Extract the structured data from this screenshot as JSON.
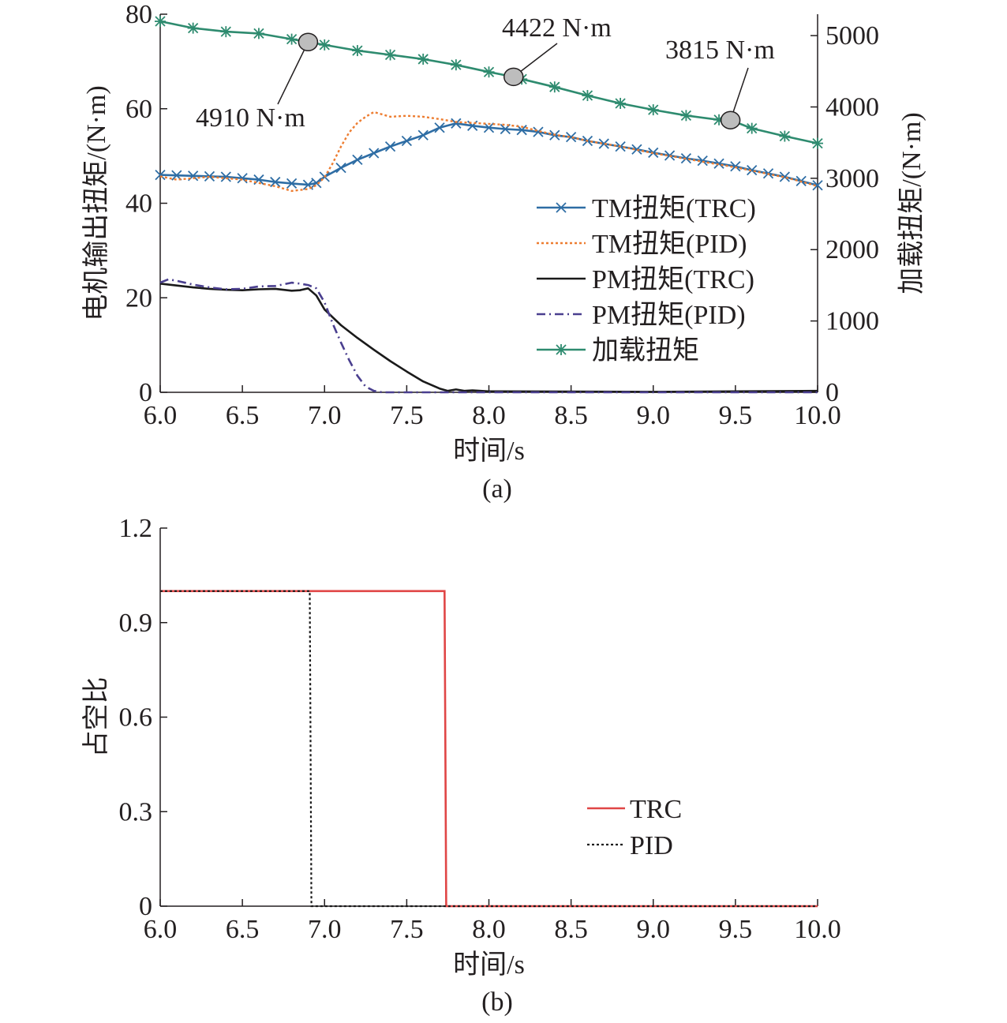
{
  "chart_data": [
    {
      "type": "line",
      "panel_label": "(a)",
      "xlabel": "时间/s",
      "ylabel_left": "电机输出扭矩/(N·m)",
      "ylabel_right": "加载扭矩/(N·m)",
      "xlim": [
        6.0,
        10.0
      ],
      "ylim_left": [
        0,
        80
      ],
      "ylim_right": [
        0,
        5300
      ],
      "xticks": [
        "6.0",
        "6.5",
        "7.0",
        "7.5",
        "8.0",
        "8.5",
        "9.0",
        "9.5",
        "10.0"
      ],
      "yticks_left": [
        "0",
        "20",
        "40",
        "60",
        "80"
      ],
      "yticks_right": [
        "0",
        "1000",
        "2000",
        "3000",
        "4000",
        "5000"
      ],
      "legend_position": "center-right",
      "series": [
        {
          "name": "TM扭矩(TRC)",
          "color": "#2e6da4",
          "style": "solid",
          "marker": "x",
          "axis": "left",
          "x": [
            6.0,
            6.1,
            6.2,
            6.3,
            6.4,
            6.5,
            6.6,
            6.7,
            6.8,
            6.9,
            6.95,
            7.0,
            7.1,
            7.2,
            7.3,
            7.4,
            7.5,
            7.6,
            7.7,
            7.8,
            7.9,
            8.0,
            8.1,
            8.2,
            8.3,
            8.4,
            8.5,
            8.6,
            8.7,
            8.8,
            8.9,
            9.0,
            9.1,
            9.2,
            9.3,
            9.4,
            9.5,
            9.6,
            9.7,
            9.8,
            9.9,
            10.0
          ],
          "y": [
            46.0,
            45.9,
            45.8,
            45.7,
            45.6,
            45.3,
            45.0,
            44.5,
            44.2,
            43.9,
            44.3,
            45.6,
            47.5,
            49.2,
            50.6,
            52.0,
            53.2,
            54.4,
            56.0,
            56.9,
            56.4,
            56.0,
            55.7,
            55.5,
            55.1,
            54.4,
            54.0,
            53.2,
            52.6,
            52.0,
            51.4,
            50.7,
            50.1,
            49.5,
            49.0,
            48.4,
            47.8,
            47.0,
            46.3,
            45.6,
            44.7,
            43.8
          ]
        },
        {
          "name": "TM扭矩(PID)",
          "color": "#ed7d31",
          "style": "dotted",
          "marker": "none",
          "axis": "left",
          "x": [
            6.0,
            6.1,
            6.2,
            6.3,
            6.4,
            6.5,
            6.6,
            6.7,
            6.8,
            6.85,
            6.9,
            6.95,
            7.0,
            7.05,
            7.1,
            7.15,
            7.2,
            7.25,
            7.3,
            7.35,
            7.4,
            7.5,
            7.6,
            7.7,
            7.8,
            7.9,
            8.0,
            8.1,
            8.2,
            8.3,
            8.4,
            8.5,
            8.6,
            8.7,
            8.8,
            8.9,
            9.0,
            9.1,
            9.2,
            9.3,
            9.4,
            9.5,
            9.6,
            9.7,
            9.8,
            9.9,
            10.0
          ],
          "y": [
            45.7,
            45.0,
            45.3,
            45.6,
            45.3,
            45.0,
            44.3,
            43.6,
            42.6,
            42.8,
            43.0,
            43.8,
            45.5,
            48.5,
            52.0,
            55.0,
            57.0,
            58.3,
            59.3,
            58.8,
            58.3,
            58.5,
            58.3,
            57.8,
            57.2,
            57.0,
            56.8,
            56.6,
            56.2,
            55.3,
            54.5,
            54.0,
            53.2,
            52.6,
            52.0,
            51.3,
            50.6,
            50.0,
            49.4,
            48.8,
            48.2,
            47.6,
            46.9,
            46.2,
            45.5,
            44.6,
            43.6
          ]
        },
        {
          "name": "PM扭矩(TRC)",
          "color": "#1a1a1a",
          "style": "solid",
          "marker": "none",
          "axis": "left",
          "x": [
            6.0,
            6.1,
            6.2,
            6.3,
            6.4,
            6.5,
            6.6,
            6.7,
            6.8,
            6.85,
            6.9,
            6.95,
            7.0,
            7.1,
            7.2,
            7.3,
            7.4,
            7.5,
            7.6,
            7.7,
            7.75,
            7.8,
            7.85,
            7.9,
            8.0,
            9.0,
            10.0
          ],
          "y": [
            23.0,
            22.6,
            22.2,
            21.9,
            21.7,
            21.6,
            21.8,
            21.9,
            21.5,
            21.6,
            22.0,
            20.5,
            17.5,
            14.2,
            11.5,
            9.0,
            6.6,
            4.4,
            2.3,
            0.8,
            0.3,
            0.6,
            0.3,
            0.4,
            0.2,
            0.1,
            0.3
          ]
        },
        {
          "name": "PM扭矩(PID)",
          "color": "#4a3f8f",
          "style": "dashdot",
          "marker": "none",
          "axis": "left",
          "x": [
            6.0,
            6.05,
            6.1,
            6.2,
            6.3,
            6.4,
            6.5,
            6.6,
            6.7,
            6.8,
            6.85,
            6.9,
            6.95,
            7.0,
            7.05,
            7.1,
            7.15,
            7.2,
            7.25,
            7.3,
            7.35,
            8.0,
            9.0,
            10.0
          ],
          "y": [
            23.2,
            23.9,
            23.6,
            22.8,
            22.2,
            21.8,
            21.9,
            22.4,
            22.5,
            23.2,
            23.0,
            22.7,
            22.0,
            19.0,
            14.5,
            10.5,
            6.8,
            3.5,
            1.2,
            0.3,
            0.0,
            0.0,
            0.0,
            0.0
          ]
        },
        {
          "name": "加载扭矩",
          "color": "#2e8b6f",
          "style": "solid",
          "marker": "asterisk",
          "axis": "right",
          "x": [
            6.0,
            6.2,
            6.4,
            6.6,
            6.8,
            6.9,
            7.0,
            7.2,
            7.4,
            7.6,
            7.8,
            8.0,
            8.15,
            8.2,
            8.4,
            8.6,
            8.8,
            9.0,
            9.2,
            9.4,
            9.47,
            9.6,
            9.8,
            10.0
          ],
          "y": [
            5200,
            5105,
            5055,
            5030,
            4950,
            4910,
            4870,
            4790,
            4730,
            4670,
            4590,
            4490,
            4422,
            4390,
            4280,
            4160,
            4050,
            3960,
            3880,
            3820,
            3815,
            3700,
            3590,
            3490
          ]
        }
      ],
      "annotations": [
        {
          "text": "4910 N·m",
          "x": 6.9,
          "y": 4910
        },
        {
          "text": "4422 N·m",
          "x": 8.15,
          "y": 4422
        },
        {
          "text": "3815 N·m",
          "x": 9.47,
          "y": 3815
        }
      ]
    },
    {
      "type": "line",
      "panel_label": "(b)",
      "xlabel": "时间/s",
      "ylabel": "占空比",
      "xlim": [
        6.0,
        10.0
      ],
      "ylim": [
        0,
        1.2
      ],
      "xticks": [
        "6.0",
        "6.5",
        "7.0",
        "7.5",
        "8.0",
        "8.5",
        "9.0",
        "9.5",
        "10.0"
      ],
      "yticks": [
        "0",
        "0.3",
        "0.6",
        "0.9",
        "1.2"
      ],
      "legend_position": "center-right",
      "series": [
        {
          "name": "TRC",
          "color": "#e04646",
          "style": "solid",
          "x": [
            6.0,
            7.73,
            7.74,
            10.0
          ],
          "y": [
            1.0,
            1.0,
            0.0,
            0.0
          ]
        },
        {
          "name": "PID",
          "color": "#1a1a1a",
          "style": "dotted",
          "x": [
            6.0,
            6.91,
            6.92,
            10.0
          ],
          "y": [
            1.0,
            1.0,
            0.0,
            0.0
          ]
        }
      ]
    }
  ]
}
